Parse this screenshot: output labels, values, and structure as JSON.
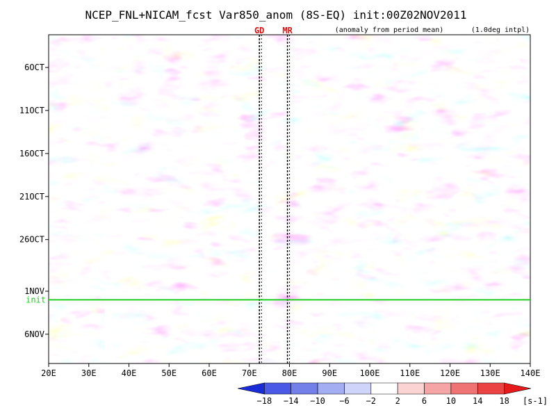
{
  "chart_data": {
    "type": "heatmap",
    "title": "NCEP_FNL+NICAM_fcst Var850_anom (8S-EQ) init:00Z02NOV2011",
    "subtitle_left": "(anomaly from period mean)",
    "subtitle_right": "(1.0deg intpl)",
    "x_ticks": [
      {
        "lon": 20,
        "label": "20E"
      },
      {
        "lon": 30,
        "label": "30E"
      },
      {
        "lon": 40,
        "label": "40E"
      },
      {
        "lon": 50,
        "label": "50E"
      },
      {
        "lon": 60,
        "label": "60E"
      },
      {
        "lon": 70,
        "label": "70E"
      },
      {
        "lon": 80,
        "label": "80E"
      },
      {
        "lon": 90,
        "label": "90E"
      },
      {
        "lon": 100,
        "label": "100E"
      },
      {
        "lon": 110,
        "label": "110E"
      },
      {
        "lon": 120,
        "label": "120E"
      },
      {
        "lon": 130,
        "label": "130E"
      },
      {
        "lon": 140,
        "label": "140E"
      }
    ],
    "xlim": [
      20,
      140
    ],
    "y_ticks": [
      {
        "day": 6,
        "label": "6OCT"
      },
      {
        "day": 11,
        "label": "11OCT"
      },
      {
        "day": 16,
        "label": "16OCT"
      },
      {
        "day": 21,
        "label": "21OCT"
      },
      {
        "day": 26,
        "label": "26OCT"
      },
      {
        "day": 32,
        "label": "1NOV"
      },
      {
        "day": 37,
        "label": "6NOV"
      }
    ],
    "ylim_days": [
      2.2,
      40.4
    ],
    "init_line": {
      "day": 33,
      "label": "init",
      "color": "#22cc22"
    },
    "markers": [
      {
        "lon": 72.5,
        "label": "GD"
      },
      {
        "lon": 79.5,
        "label": "MR"
      }
    ],
    "missing_band_lon": [
      34,
      36
    ],
    "colorbar": {
      "labels": [
        "-18",
        "-14",
        "-10",
        "-6",
        "-2",
        "2",
        "6",
        "10",
        "14",
        "18"
      ],
      "unit": "[s-1]",
      "colors": [
        "#1a2bd8",
        "#4a5ae6",
        "#7380ea",
        "#a3adf2",
        "#cfd4fa",
        "#ffffff",
        "#fbd3d3",
        "#f5a5a5",
        "#f07373",
        "#eb4343",
        "#e61a1a"
      ]
    }
  }
}
